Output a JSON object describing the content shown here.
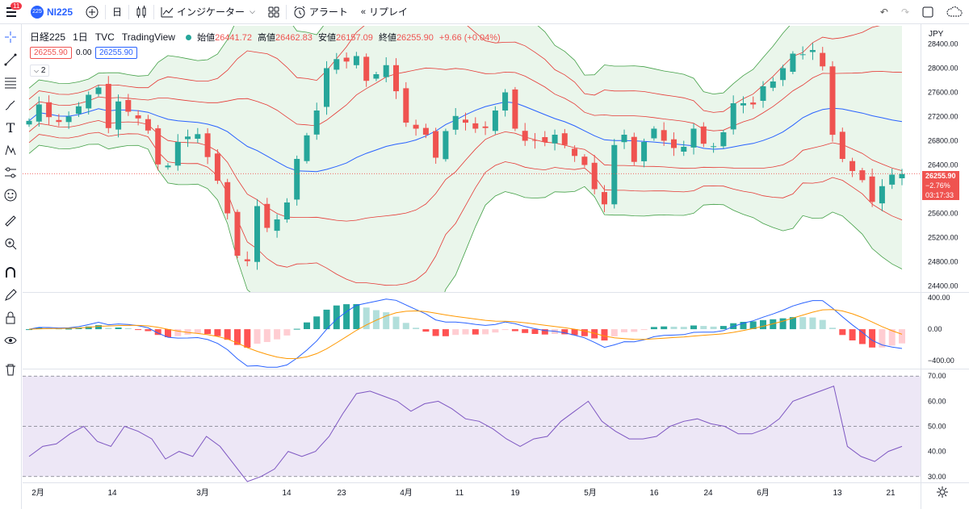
{
  "toolbar": {
    "badge": "11",
    "symbol_icon_text": "225",
    "symbol": "NI225",
    "interval": "日",
    "indicators": "インジケーター",
    "alerts": "アラート",
    "replay": "リプレイ"
  },
  "legend": {
    "name": "日経225",
    "interval": "1日",
    "exchange": "TVC",
    "source": "TradingView",
    "open_label": "始値",
    "open": "26441.72",
    "high_label": "高値",
    "high": "26462.83",
    "low_label": "安値",
    "low": "26157.09",
    "close_label": "終値",
    "close": "26255.90",
    "change": "+9.66 (+0.04%)",
    "pill1": "26255.90",
    "pill_mid": "0.00",
    "pill2": "26255.90",
    "collapse": "2"
  },
  "price_axis": {
    "currency": "JPY",
    "ticks": [
      "28400.00",
      "28000.00",
      "27600.00",
      "27200.00",
      "26800.00",
      "26400.00",
      "26000.00",
      "25600.00",
      "25200.00",
      "24800.00",
      "24400.00"
    ],
    "last_price": "26255.90",
    "last_change": "−2.76%",
    "countdown": "03:17:33"
  },
  "macd_axis": {
    "ticks": [
      "400.00",
      "0.00",
      "−400.00"
    ]
  },
  "rsi_axis": {
    "ticks": [
      "70.00",
      "60.00",
      "50.00",
      "40.00",
      "30.00"
    ]
  },
  "time_axis": {
    "labels": [
      "2月",
      "14",
      "3月",
      "14",
      "23",
      "4月",
      "11",
      "19",
      "5月",
      "16",
      "24",
      "6月",
      "13",
      "21"
    ]
  },
  "colors": {
    "up": "#26a69a",
    "down": "#ef5350",
    "accent": "#2962ff",
    "band_fill": "#e8f5e9",
    "rsi_fill": "#ede7f6",
    "rsi_line": "#7e57c2",
    "macd_line": "#2962ff",
    "signal_line": "#ff9800"
  },
  "chart_data": [
    {
      "type": "candlestick",
      "title": "日経225",
      "close_series": [
        27130,
        27400,
        27190,
        27110,
        27200,
        27370,
        27560,
        27680,
        27010,
        27450,
        27280,
        27170,
        26970,
        26410,
        26390,
        26780,
        26870,
        26910,
        26530,
        26140,
        25600,
        24900,
        24810,
        25720,
        25360,
        25500,
        25780,
        26500,
        26890,
        27300,
        28000,
        28150,
        28110,
        28200,
        27790,
        27900,
        28050,
        27620,
        27100,
        27000,
        26900,
        26520,
        26960,
        27210,
        27100,
        27000,
        27010,
        27300,
        27600,
        27000,
        26800,
        26800,
        26780,
        26900,
        26730,
        26550,
        26400,
        26000,
        25750,
        26730,
        26900,
        26450,
        26780,
        27000,
        26800,
        26680,
        26700,
        27000,
        26750,
        26710,
        26940,
        27420,
        27420,
        27400,
        27700,
        27780,
        28000,
        28240,
        28230,
        28300,
        28030,
        26900,
        26500,
        26300,
        26150,
        25790,
        26050,
        26240,
        26250
      ],
      "axis_range": [
        24300,
        28700
      ],
      "indicators": [
        "Bollinger Bands (1σ/2σ/3σ)"
      ]
    },
    {
      "type": "bar+line",
      "title": "MACD",
      "axis_range": [
        -500,
        450
      ]
    },
    {
      "type": "line",
      "title": "RSI",
      "axis_range": [
        28,
        72
      ],
      "series": [
        {
          "values": [
            38,
            42,
            43,
            47,
            50,
            44,
            42,
            50,
            48,
            45,
            37,
            40,
            38,
            46,
            42,
            35,
            28,
            30,
            33,
            40,
            38,
            40,
            46,
            55,
            63,
            64,
            62,
            60,
            56,
            59,
            60,
            57,
            53,
            52,
            49,
            45,
            42,
            45,
            46,
            52,
            56,
            60,
            52,
            48,
            45,
            45,
            46,
            50,
            52,
            53,
            51,
            50,
            47,
            47,
            49,
            53,
            60,
            62,
            64,
            66,
            42,
            38,
            36,
            40,
            42
          ]
        }
      ]
    }
  ]
}
